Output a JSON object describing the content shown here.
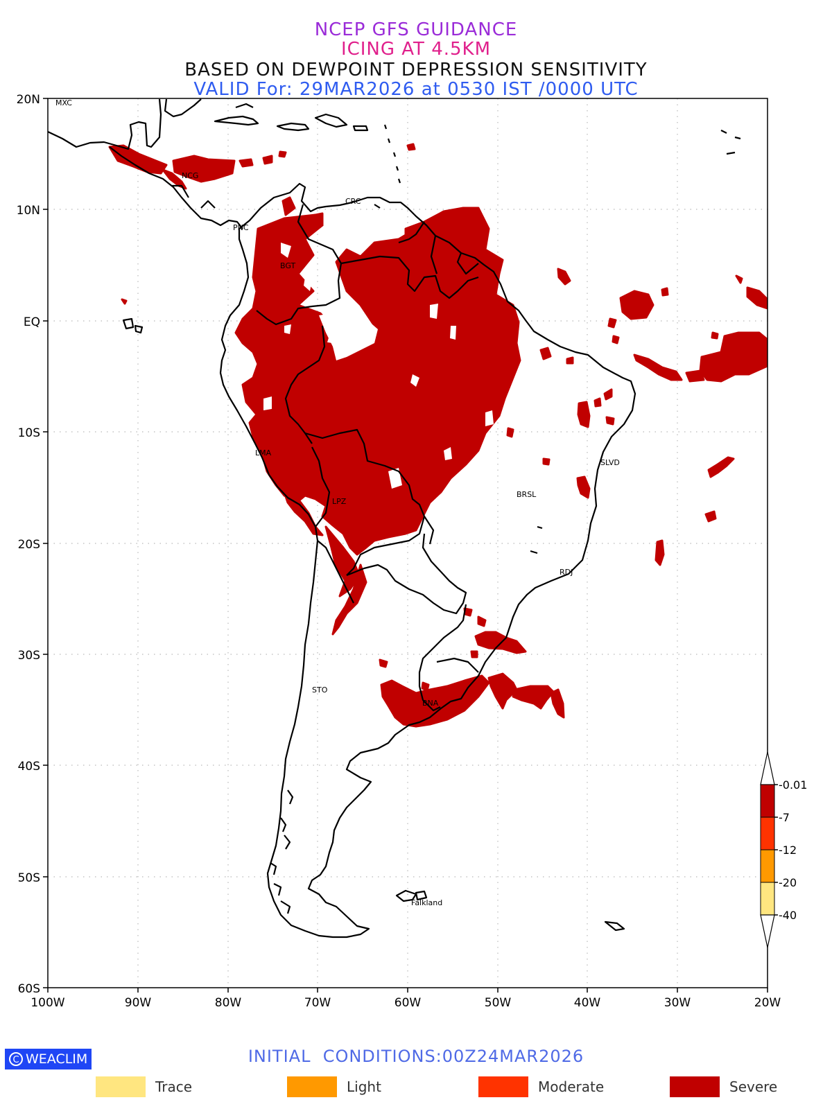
{
  "titles": {
    "line1": "NCEP GFS GUIDANCE",
    "line2": "ICING AT 4.5KM",
    "line3": "BASED ON DEWPOINT DEPRESSION SENSITIVITY",
    "line4": "VALID For: 29MAR2026 at 0530 IST /0000 UTC"
  },
  "colors": {
    "title1": "#9a2bd8",
    "title2": "#e0208c",
    "title3": "#111111",
    "title4": "#2f5cf0",
    "severe": "#c00000",
    "moderate": "#ff3300",
    "light": "#ff9900",
    "trace": "#ffe680",
    "initial": "#4f6ae6",
    "logo_bg": "#1f46f5"
  },
  "map": {
    "lat_labels": [
      "20N",
      "10N",
      "EQ",
      "10S",
      "20S",
      "30S",
      "40S",
      "50S",
      "60S"
    ],
    "lon_labels": [
      "100W",
      "90W",
      "80W",
      "70W",
      "60W",
      "50W",
      "40W",
      "30W",
      "20W"
    ],
    "place_labels": [
      "MXC",
      "NCG",
      "PNC",
      "CRC",
      "BGT",
      "LMA",
      "LPZ",
      "BRSL",
      "SLVD",
      "RDJ",
      "STO",
      "BNA",
      "Falkland"
    ]
  },
  "colorbar": {
    "labels": [
      "-0.01",
      "-7",
      "-12",
      "-20",
      "-40"
    ]
  },
  "legend": [
    {
      "label": "Trace",
      "color": "#ffe680"
    },
    {
      "label": "Light",
      "color": "#ff9900"
    },
    {
      "label": "Moderate",
      "color": "#ff3300"
    },
    {
      "label": "Severe",
      "color": "#c00000"
    }
  ],
  "initial_conditions": "INITIAL  CONDITIONS:00Z24MAR2026",
  "logo": {
    "text": "WEACLIM",
    "symbol": "C"
  }
}
